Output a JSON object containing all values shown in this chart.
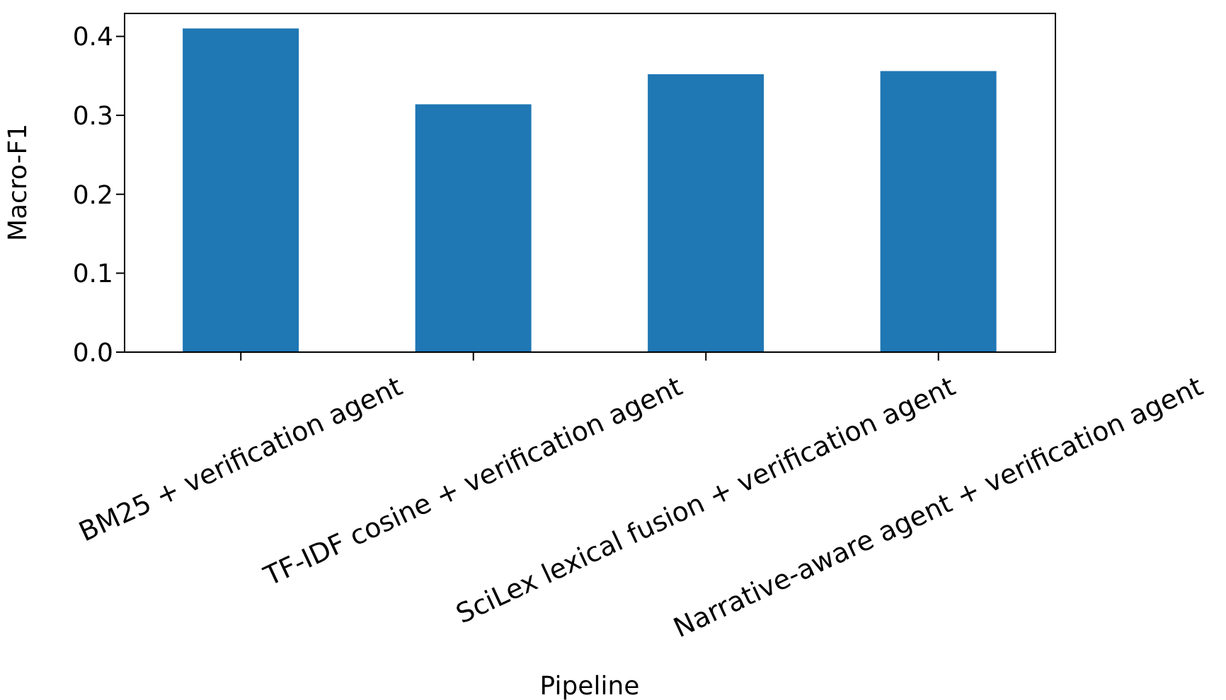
{
  "chart_data": {
    "type": "bar",
    "xlabel": "Pipeline",
    "ylabel": "Macro-F1",
    "categories": [
      "BM25 + verification agent",
      "TF-IDF cosine + verification agent",
      "SciLex lexical fusion + verification agent",
      "Narrative-aware agent + verification agent"
    ],
    "values": [
      0.41,
      0.314,
      0.352,
      0.356
    ],
    "color": "#1f77b4",
    "ylim": [
      0,
      0.43
    ],
    "yticks": [
      {
        "value": 0,
        "label": "0.0"
      },
      {
        "value": 0.1,
        "label": "0.1"
      },
      {
        "value": 0.2,
        "label": "0.2"
      },
      {
        "value": 0.3,
        "label": "0.3"
      },
      {
        "value": 0.4,
        "label": "0.4"
      }
    ],
    "grid": false,
    "legend": false
  }
}
